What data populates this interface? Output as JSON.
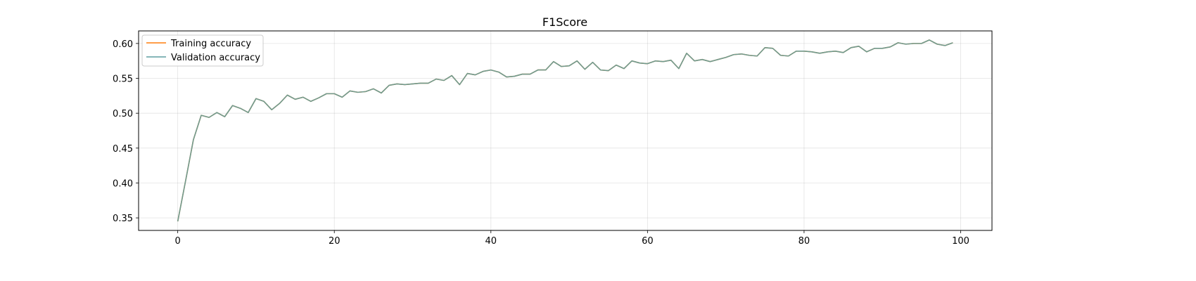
{
  "chart_data": {
    "type": "line",
    "title": "F1Score",
    "xlabel": "",
    "ylabel": "",
    "xlim": [
      -5,
      104
    ],
    "ylim": [
      0.332,
      0.618
    ],
    "xticks": [
      0,
      20,
      40,
      60,
      80,
      100
    ],
    "yticks": [
      0.35,
      0.4,
      0.45,
      0.5,
      0.55,
      0.6
    ],
    "grid": true,
    "legend_position": "upper-left",
    "x": [
      0,
      1,
      2,
      3,
      4,
      5,
      6,
      7,
      8,
      9,
      10,
      11,
      12,
      13,
      14,
      15,
      16,
      17,
      18,
      19,
      20,
      21,
      22,
      23,
      24,
      25,
      26,
      27,
      28,
      29,
      30,
      31,
      32,
      33,
      34,
      35,
      36,
      37,
      38,
      39,
      40,
      41,
      42,
      43,
      44,
      45,
      46,
      47,
      48,
      49,
      50,
      51,
      52,
      53,
      54,
      55,
      56,
      57,
      58,
      59,
      60,
      61,
      62,
      63,
      64,
      65,
      66,
      67,
      68,
      69,
      70,
      71,
      72,
      73,
      74,
      75,
      76,
      77,
      78,
      79,
      80,
      81,
      82,
      83,
      84,
      85,
      86,
      87,
      88,
      89,
      90,
      91,
      92,
      93,
      94,
      95,
      96,
      97,
      98,
      99
    ],
    "series": [
      {
        "name": "Training accuracy",
        "color": "#ff7f0e",
        "values": [
          0.345,
          0.403,
          0.462,
          0.497,
          0.494,
          0.501,
          0.495,
          0.511,
          0.507,
          0.501,
          0.521,
          0.517,
          0.505,
          0.514,
          0.526,
          0.52,
          0.523,
          0.517,
          0.522,
          0.528,
          0.528,
          0.523,
          0.532,
          0.53,
          0.531,
          0.535,
          0.529,
          0.54,
          0.542,
          0.541,
          0.542,
          0.543,
          0.543,
          0.549,
          0.547,
          0.554,
          0.541,
          0.557,
          0.555,
          0.56,
          0.562,
          0.559,
          0.552,
          0.553,
          0.556,
          0.556,
          0.562,
          0.562,
          0.574,
          0.567,
          0.568,
          0.575,
          0.563,
          0.573,
          0.562,
          0.561,
          0.569,
          0.564,
          0.575,
          0.572,
          0.571,
          0.575,
          0.574,
          0.576,
          0.564,
          0.586,
          0.575,
          0.577,
          0.574,
          0.577,
          0.58,
          0.584,
          0.585,
          0.583,
          0.582,
          0.594,
          0.593,
          0.583,
          0.582,
          0.589,
          0.589,
          0.588,
          0.586,
          0.588,
          0.589,
          0.587,
          0.594,
          0.596,
          0.588,
          0.593,
          0.593,
          0.595,
          0.601,
          0.599,
          0.6,
          0.6,
          0.605,
          0.599,
          0.597,
          0.601
        ]
      },
      {
        "name": "Validation accuracy",
        "color": "#5f9ea0",
        "values": [
          0.345,
          0.403,
          0.462,
          0.497,
          0.494,
          0.501,
          0.495,
          0.511,
          0.507,
          0.501,
          0.521,
          0.517,
          0.505,
          0.514,
          0.526,
          0.52,
          0.523,
          0.517,
          0.522,
          0.528,
          0.528,
          0.523,
          0.532,
          0.53,
          0.531,
          0.535,
          0.529,
          0.54,
          0.542,
          0.541,
          0.542,
          0.543,
          0.543,
          0.549,
          0.547,
          0.554,
          0.541,
          0.557,
          0.555,
          0.56,
          0.562,
          0.559,
          0.552,
          0.553,
          0.556,
          0.556,
          0.562,
          0.562,
          0.574,
          0.567,
          0.568,
          0.575,
          0.563,
          0.573,
          0.562,
          0.561,
          0.569,
          0.564,
          0.575,
          0.572,
          0.571,
          0.575,
          0.574,
          0.576,
          0.564,
          0.586,
          0.575,
          0.577,
          0.574,
          0.577,
          0.58,
          0.584,
          0.585,
          0.583,
          0.582,
          0.594,
          0.593,
          0.583,
          0.582,
          0.589,
          0.589,
          0.588,
          0.586,
          0.588,
          0.589,
          0.587,
          0.594,
          0.596,
          0.588,
          0.593,
          0.593,
          0.595,
          0.601,
          0.599,
          0.6,
          0.6,
          0.605,
          0.599,
          0.597,
          0.601
        ]
      }
    ]
  }
}
